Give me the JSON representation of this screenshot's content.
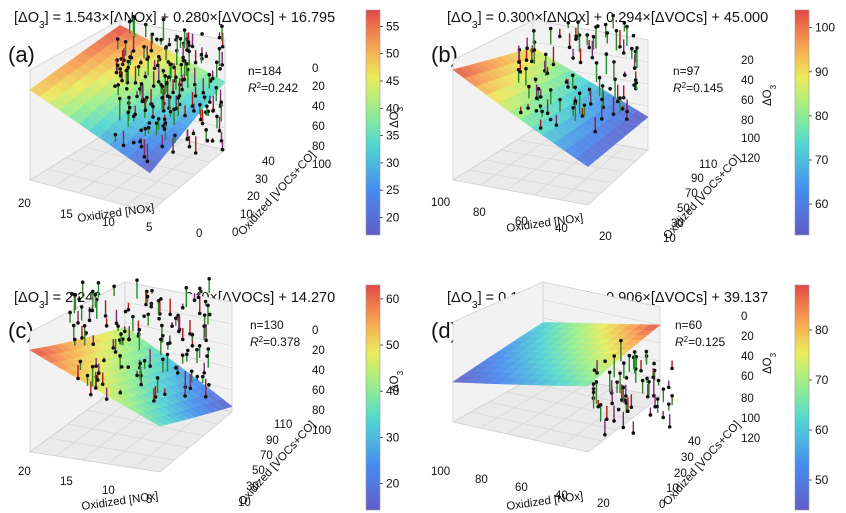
{
  "figure": {
    "colormap": "rainbow"
  },
  "chart_data": [
    {
      "panel": "(a)",
      "type": "scatter3d_surface",
      "title_lhs": "[ΔO",
      "title_lhs_sub": "3",
      "title_rhs": "] = 1.543×[ΔNOx] + 0.280×[ΔVOCs] + 16.795",
      "n_text": "n=184",
      "r2_text": "=0.242",
      "r2_value": 0.242,
      "n": 184,
      "coef": {
        "nox": 1.543,
        "vocs": 0.28,
        "intercept": 16.795
      },
      "xlabel": "Oxidized [NOx]",
      "ylabel": "Oxidized [VOCs+CO]",
      "zlabel": "ΔO",
      "xticks": [
        "20",
        "15",
        "10",
        "5",
        "0"
      ],
      "yticks": [
        "0",
        "10",
        "20",
        "30",
        "40"
      ],
      "zticks": [
        "0",
        "20",
        "40",
        "60",
        "80",
        "100"
      ],
      "xlim": [
        20,
        0
      ],
      "ylim": [
        0,
        40
      ],
      "zlim": [
        0,
        100
      ],
      "cbar_ticks": [
        "20",
        "25",
        "30",
        "35",
        "40",
        "45",
        "50",
        "55"
      ],
      "cbar_range": [
        16.795,
        58
      ]
    },
    {
      "panel": "(b)",
      "type": "scatter3d_surface",
      "title_lhs": "[ΔO",
      "title_lhs_sub": "3",
      "title_rhs": "] = 0.300×[ΔNOx] + 0.294×[ΔVOCs] + 45.000",
      "n_text": "n=97",
      "r2_text": "=0.145",
      "r2_value": 0.145,
      "n": 97,
      "coef": {
        "nox": 0.3,
        "vocs": 0.294,
        "intercept": 45.0
      },
      "xlabel": "Oxidized [NOx]",
      "ylabel": "Oxidized [VOCs+CO]",
      "zlabel": "ΔO",
      "xticks": [
        "100",
        "80",
        "60",
        "40",
        "20"
      ],
      "yticks": [
        "10",
        "30",
        "50",
        "70",
        "90",
        "110"
      ],
      "zticks": [
        "20",
        "40",
        "60",
        "80",
        "100",
        "120"
      ],
      "xlim": [
        100,
        20
      ],
      "ylim": [
        10,
        110
      ],
      "zlim": [
        20,
        120
      ],
      "cbar_ticks": [
        "60",
        "70",
        "80",
        "90",
        "100"
      ],
      "cbar_range": [
        53,
        104
      ]
    },
    {
      "panel": "(c)",
      "type": "scatter3d_surface",
      "title_lhs": "[ΔO",
      "title_lhs_sub": "3",
      "title_rhs": "] = 2.249×[ΔNOx] + 0.040×[ΔVOCs] + 14.270",
      "n_text": "n=130",
      "r2_text": "=0.378",
      "r2_value": 0.378,
      "n": 130,
      "coef": {
        "nox": 2.249,
        "vocs": 0.04,
        "intercept": 14.27
      },
      "xlabel": "Oxidized [NOx]",
      "ylabel": "Oxidized [VOCs+CO]",
      "zlabel": "ΔO",
      "xticks": [
        "20",
        "15",
        "10",
        "5"
      ],
      "yticks": [
        "10",
        "30",
        "50",
        "70",
        "90",
        "110"
      ],
      "zticks": [
        "0",
        "20",
        "40",
        "60",
        "80",
        "100"
      ],
      "xlim": [
        20,
        0
      ],
      "ylim": [
        10,
        110
      ],
      "zlim": [
        0,
        100
      ],
      "cbar_ticks": [
        "20",
        "30",
        "40",
        "50",
        "60"
      ],
      "cbar_range": [
        14.27,
        63
      ]
    },
    {
      "panel": "(d)",
      "type": "scatter3d_surface",
      "title_lhs": "[ΔO",
      "title_lhs_sub": "3",
      "title_rhs": "] = 0.179×[ΔNOx] + 0.906×[ΔVOCs] + 39.137",
      "n_text": "n=60",
      "r2_text": "=0.125",
      "r2_value": 0.125,
      "n": 60,
      "coef": {
        "nox": 0.179,
        "vocs": 0.906,
        "intercept": 39.137
      },
      "xlabel": "Oxidized [NOx]",
      "ylabel": "Oxidized [VOCs+CO]",
      "zlabel": "ΔO",
      "xticks": [
        "100",
        "80",
        "60",
        "40",
        "20"
      ],
      "yticks": [
        "0",
        "10",
        "20",
        "30",
        "40"
      ],
      "zticks": [
        "0",
        "20",
        "40",
        "60",
        "80",
        "100",
        "120"
      ],
      "xlim": [
        100,
        20
      ],
      "ylim": [
        0,
        40
      ],
      "zlim": [
        0,
        120
      ],
      "cbar_ticks": [
        "50",
        "60",
        "70",
        "80"
      ],
      "cbar_range": [
        44,
        89
      ]
    }
  ]
}
